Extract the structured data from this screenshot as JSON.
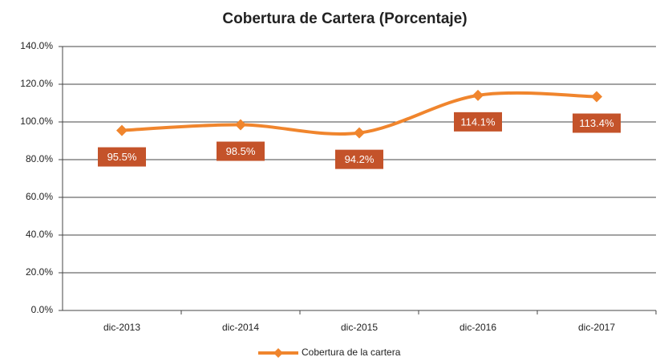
{
  "chart_data": {
    "type": "line",
    "title": "Cobertura de Cartera (Porcentaje)",
    "categories": [
      "dic-2013",
      "dic-2014",
      "dic-2015",
      "dic-2016",
      "dic-2017"
    ],
    "series": [
      {
        "name": "Cobertura de la cartera",
        "color": "#f0852d",
        "values": [
          95.5,
          98.5,
          94.2,
          114.1,
          113.4
        ],
        "value_labels": [
          "95.5%",
          "98.5%",
          "94.2%",
          "114.1%",
          "113.4%"
        ]
      }
    ],
    "ylim": [
      0,
      140
    ],
    "yticks": [
      {
        "value": 0,
        "label": "0.0%"
      },
      {
        "value": 20,
        "label": "20.0%"
      },
      {
        "value": 40,
        "label": "40.0%"
      },
      {
        "value": 60,
        "label": "60.0%"
      },
      {
        "value": 80,
        "label": "80.0%"
      },
      {
        "value": 100,
        "label": "100.0%"
      },
      {
        "value": 120,
        "label": "120.0%"
      },
      {
        "value": 140,
        "label": "140.0%"
      }
    ],
    "grid": true,
    "legend": "bottom",
    "label_color": "#c4532a"
  }
}
